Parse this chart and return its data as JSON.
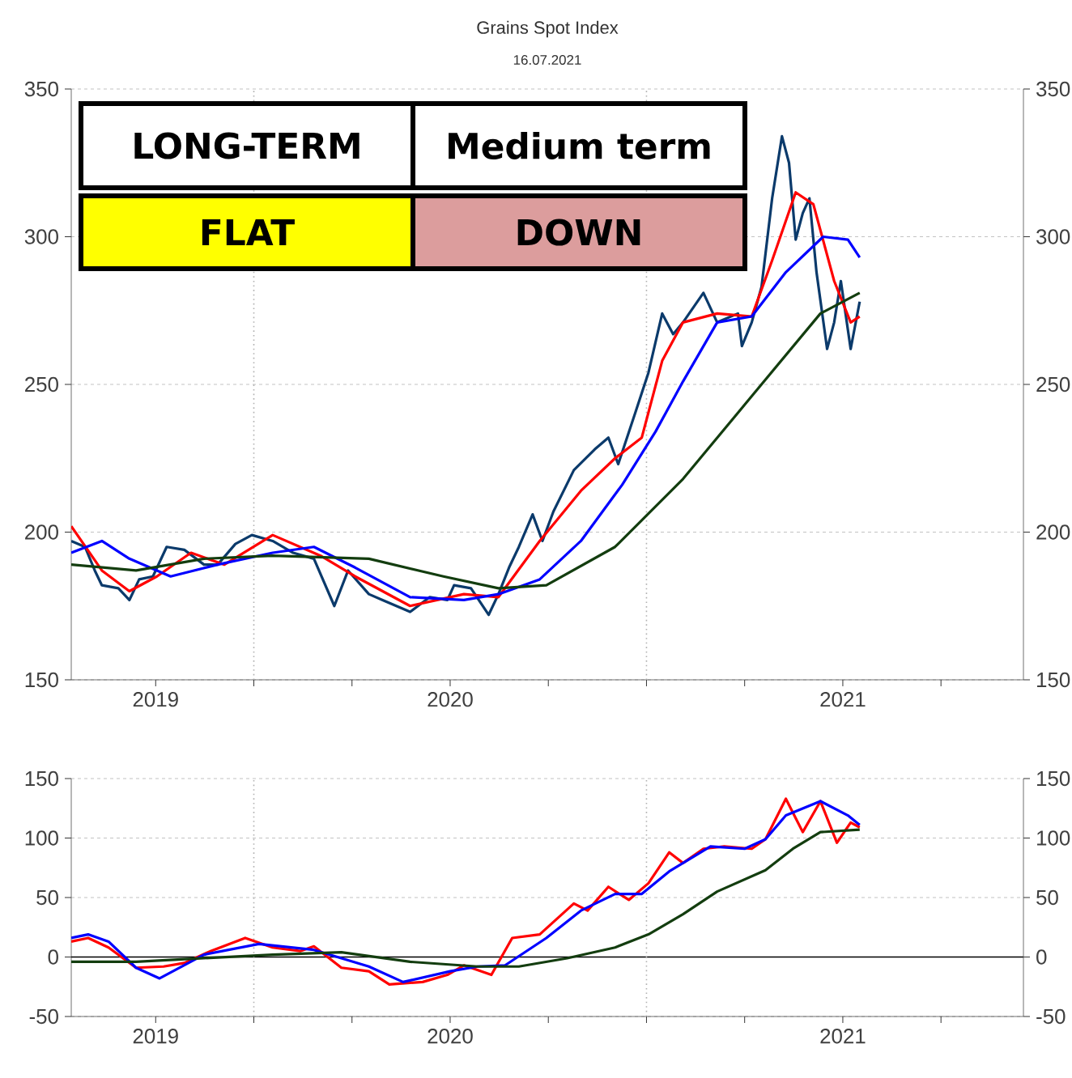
{
  "chart_data": [
    {
      "type": "line",
      "title": "Grains Spot Index",
      "subtitle": "16.07.2021",
      "xlim": [
        2019.035,
        2021.46
      ],
      "xticks": [
        {
          "value": 2019.25,
          "label": "2019"
        },
        {
          "value": 2019.5,
          "label": null
        },
        {
          "value": 2019.75,
          "label": null
        },
        2020,
        {
          "value": 2020.25,
          "label": null
        },
        {
          "value": 2020.5,
          "label": null
        },
        {
          "value": 2020.75,
          "label": null
        },
        2021,
        {
          "value": 2021.25,
          "label": null
        }
      ],
      "ylim": [
        150,
        350
      ],
      "yticks": [
        150,
        200,
        250,
        300,
        350
      ],
      "y2lim": [
        150,
        350
      ],
      "y2ticks": [
        150,
        200,
        250,
        300,
        350
      ],
      "grid": "y",
      "line_style": "solid",
      "marker": "none",
      "ref_lines": [
        {
          "axis": "x",
          "value": 2019.5,
          "color": "#b0b0b0",
          "line_style": "dotted"
        },
        {
          "axis": "x",
          "value": 2020.5,
          "color": "#b0b0b0",
          "line_style": "dotted"
        }
      ],
      "series": [
        {
          "color": "#0b3a6b",
          "x": [
            2019.035,
            2019.07,
            2019.095,
            2019.113,
            2019.155,
            2019.183,
            2019.208,
            2019.243,
            2019.278,
            2019.323,
            2019.373,
            2019.408,
            2019.453,
            2019.495,
            2019.548,
            2019.6,
            2019.653,
            2019.705,
            2019.74,
            2019.793,
            2019.828,
            2019.898,
            2019.948,
            2019.993,
            2020.01,
            2020.053,
            2020.098,
            2020.123,
            2020.15,
            2020.175,
            2020.21,
            2020.235,
            2020.263,
            2020.315,
            2020.368,
            2020.403,
            2020.428,
            2020.473,
            2020.505,
            2020.54,
            2020.568,
            2020.593,
            2020.645,
            2020.68,
            2020.733,
            2020.743,
            2020.768,
            2020.793,
            2020.82,
            2020.845,
            2020.863,
            2020.88,
            2020.898,
            2020.915,
            2020.933,
            2020.96,
            2020.978,
            2020.995,
            2021.02,
            2021.043
          ],
          "values": [
            197,
            195,
            187,
            182,
            181,
            177,
            184,
            185,
            195,
            194,
            189,
            189,
            196,
            199,
            197,
            193,
            191,
            175,
            187,
            179,
            177,
            173,
            178,
            177,
            182,
            181,
            172,
            179,
            188,
            195,
            206,
            197,
            207,
            221,
            228,
            232,
            223,
            241,
            254,
            274,
            267,
            271,
            281,
            271,
            274,
            263,
            271,
            283,
            313,
            334,
            325,
            299,
            308,
            313,
            288,
            262,
            271,
            285,
            262,
            278
          ]
        },
        {
          "color": "#ff0000",
          "x": [
            2019.035,
            2019.113,
            2019.183,
            2019.253,
            2019.34,
            2019.425,
            2019.548,
            2019.67,
            2019.758,
            2019.898,
            2020.035,
            2020.123,
            2020.228,
            2020.333,
            2020.42,
            2020.488,
            2020.54,
            2020.593,
            2020.68,
            2020.768,
            2020.82,
            2020.88,
            2020.925,
            2020.978,
            2021.02,
            2021.043
          ],
          "values": [
            202,
            187,
            180,
            185,
            193,
            189,
            199,
            192,
            185,
            175,
            179,
            178,
            197,
            214,
            225,
            232,
            258,
            271,
            274,
            273,
            292,
            315,
            311,
            285,
            271,
            273
          ]
        },
        {
          "color": "#0000ff",
          "x": [
            2019.035,
            2019.113,
            2019.183,
            2019.288,
            2019.408,
            2019.548,
            2019.653,
            2019.758,
            2019.898,
            2020.035,
            2020.123,
            2020.228,
            2020.333,
            2020.438,
            2020.523,
            2020.593,
            2020.68,
            2020.768,
            2020.855,
            2020.95,
            2021.013,
            2021.043
          ],
          "values": [
            193,
            197,
            191,
            185,
            189,
            193,
            195,
            188,
            178,
            177,
            179,
            184,
            197,
            216,
            234,
            251,
            271,
            273,
            288,
            300,
            299,
            293
          ]
        },
        {
          "color": "#133d0f",
          "x": [
            2019.035,
            2019.2,
            2019.373,
            2019.548,
            2019.793,
            2019.983,
            2020.123,
            2020.245,
            2020.42,
            2020.593,
            2020.768,
            2020.943,
            2021.043
          ],
          "values": [
            189,
            187,
            191,
            192,
            191,
            185,
            181,
            182,
            195,
            218,
            246,
            274,
            281
          ]
        }
      ]
    },
    {
      "type": "line",
      "xlim": [
        2019.035,
        2021.46
      ],
      "xticks": [
        {
          "value": 2019.25,
          "label": "2019"
        },
        {
          "value": 2019.5,
          "label": null
        },
        {
          "value": 2019.75,
          "label": null
        },
        2020,
        {
          "value": 2020.25,
          "label": null
        },
        {
          "value": 2020.5,
          "label": null
        },
        {
          "value": 2020.75,
          "label": null
        },
        2021,
        {
          "value": 2021.25,
          "label": null
        }
      ],
      "ylim": [
        -50,
        150
      ],
      "yticks": [
        -50,
        0,
        50,
        100,
        150
      ],
      "y2lim": [
        -50,
        150
      ],
      "y2ticks": [
        -50,
        0,
        50,
        100,
        150
      ],
      "grid": "y",
      "line_style": "solid",
      "marker": "none",
      "ref_lines": [
        {
          "axis": "y",
          "value": 0,
          "color": "#000000",
          "line_style": "solid"
        },
        {
          "axis": "x",
          "value": 2019.5,
          "color": "#b0b0b0",
          "line_style": "dotted"
        },
        {
          "axis": "x",
          "value": 2020.5,
          "color": "#b0b0b0",
          "line_style": "dotted"
        }
      ],
      "series": [
        {
          "color": "#ff0000",
          "x": [
            2019.035,
            2019.078,
            2019.13,
            2019.2,
            2019.27,
            2019.323,
            2019.39,
            2019.478,
            2019.548,
            2019.618,
            2019.653,
            2019.723,
            2019.793,
            2019.845,
            2019.93,
            2019.993,
            2020.035,
            2020.105,
            2020.158,
            2020.228,
            2020.315,
            2020.35,
            2020.403,
            2020.455,
            2020.505,
            2020.558,
            2020.593,
            2020.645,
            2020.698,
            2020.768,
            2020.803,
            2020.855,
            2020.898,
            2020.943,
            2020.985,
            2021.02,
            2021.043
          ],
          "values": [
            13,
            16,
            8,
            -9,
            -8,
            -5,
            5,
            16,
            8,
            5,
            9,
            -9,
            -12,
            -23,
            -21,
            -15,
            -7,
            -15,
            16,
            19,
            45,
            39,
            59,
            48,
            62,
            88,
            79,
            91,
            93,
            91,
            99,
            133,
            105,
            131,
            96,
            113,
            109
          ]
        },
        {
          "color": "#0000ff",
          "x": [
            2019.035,
            2019.078,
            2019.13,
            2019.2,
            2019.26,
            2019.373,
            2019.513,
            2019.653,
            2019.793,
            2019.88,
            2020.0,
            2020.07,
            2020.14,
            2020.245,
            2020.333,
            2020.42,
            2020.488,
            2020.558,
            2020.663,
            2020.75,
            2020.803,
            2020.855,
            2020.943,
            2021.013,
            2021.043
          ],
          "values": [
            16,
            19,
            13,
            -9,
            -18,
            2,
            11,
            6,
            -8,
            -21,
            -12,
            -8,
            -7,
            16,
            39,
            53,
            53,
            72,
            93,
            91,
            99,
            119,
            131,
            119,
            111
          ]
        },
        {
          "color": "#133d0f",
          "x": [
            2019.035,
            2019.2,
            2019.373,
            2019.548,
            2019.723,
            2019.898,
            2020.07,
            2020.175,
            2020.298,
            2020.42,
            2020.505,
            2020.593,
            2020.68,
            2020.803,
            2020.873,
            2020.943,
            2021.043
          ],
          "values": [
            -4,
            -4,
            -1,
            2,
            4,
            -4,
            -8,
            -8,
            -1,
            8,
            19,
            36,
            55,
            73,
            91,
            105,
            107
          ]
        }
      ]
    },
    {
      "type": "other",
      "annotations": [
        "LONG-TERM",
        "Medium term",
        "FLAT",
        "DOWN"
      ],
      "colors": [
        "#ffffff",
        "#ffffff",
        "#ffff00",
        "#dc9d9d"
      ]
    }
  ]
}
